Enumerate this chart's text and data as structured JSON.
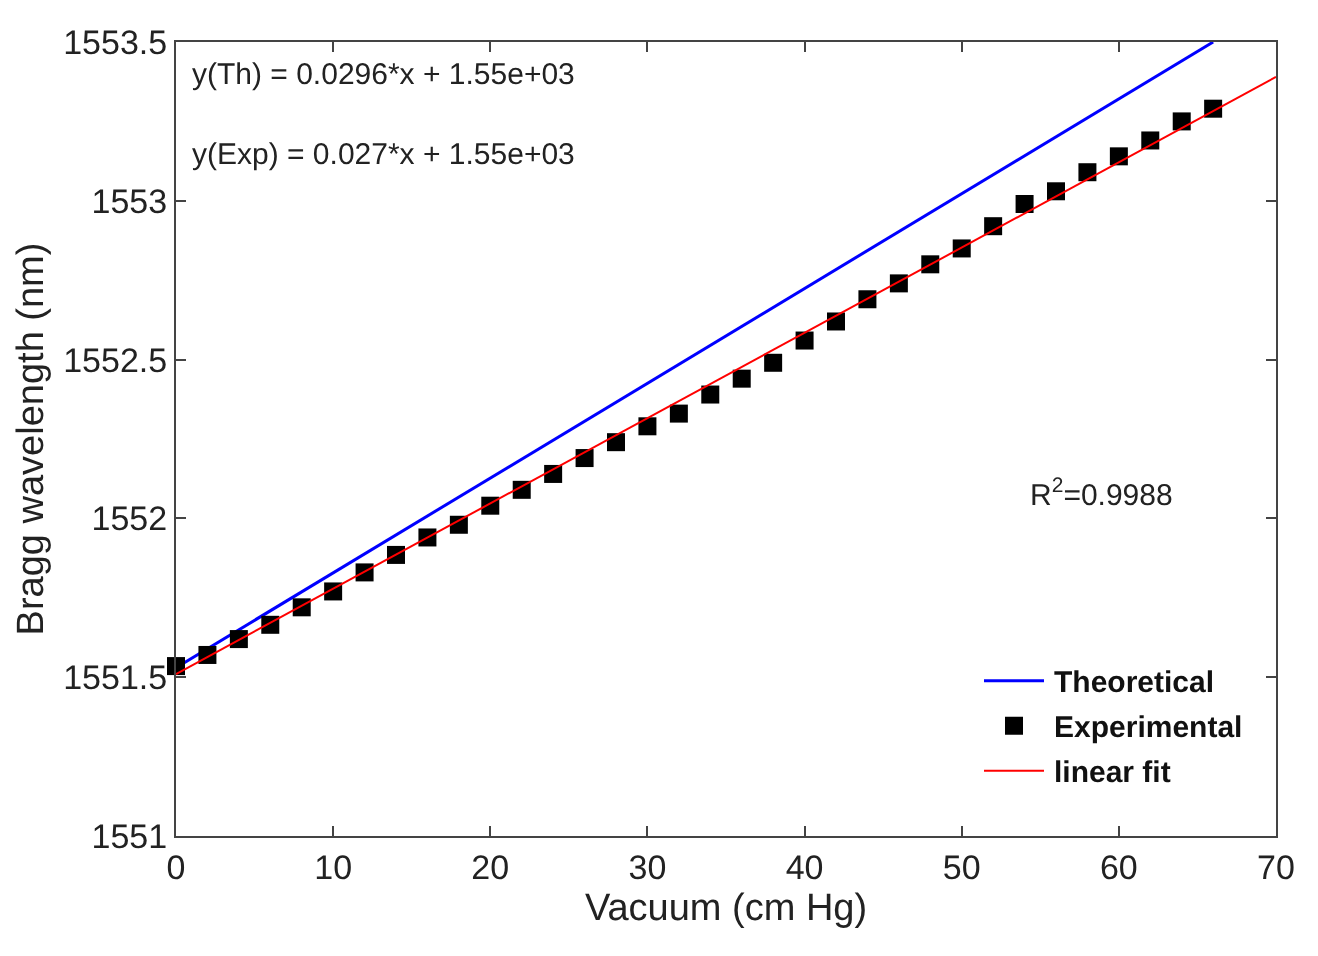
{
  "chart_data": {
    "type": "scatter",
    "xlabel": "Vacuum (cm Hg)",
    "ylabel": "Bragg wavelength (nm)",
    "xlim": [
      0,
      70
    ],
    "xticks": [
      0,
      10,
      20,
      30,
      40,
      50,
      60,
      70
    ],
    "ylim": [
      1551,
      1553.5
    ],
    "yticks": [
      1551,
      1551.5,
      1552,
      1552.5,
      1553,
      1553.5
    ],
    "grid": false,
    "legend": "bottom right",
    "annotations": [
      "y(Th) = 0.0296*x + 1.55e+03",
      "y(Exp) = 0.027*x + 1.55e+03",
      "R$^{2}$=0.9988"
    ],
    "series": [
      {
        "name": "Theoretical",
        "type": "line",
        "color": "#0000ff",
        "marker": "none",
        "line_style": "solid",
        "x": [
          0,
          66
        ],
        "values": [
          1551.53,
          1553.5
        ]
      },
      {
        "name": "Experimental",
        "color": "#000000",
        "marker": "square",
        "x": [
          0,
          2,
          4,
          6,
          8,
          10,
          12,
          14,
          16,
          18,
          20,
          22,
          24,
          26,
          28,
          30,
          32,
          34,
          36,
          38,
          40,
          42,
          44,
          46,
          48,
          50,
          52,
          54,
          56,
          58,
          60,
          62,
          64,
          66
        ],
        "values": [
          1551.535,
          1551.57,
          1551.62,
          1551.665,
          1551.72,
          1551.77,
          1551.83,
          1551.885,
          1551.94,
          1551.98,
          1552.04,
          1552.09,
          1552.14,
          1552.19,
          1552.24,
          1552.29,
          1552.33,
          1552.39,
          1552.44,
          1552.49,
          1552.56,
          1552.62,
          1552.69,
          1552.74,
          1552.8,
          1552.85,
          1552.92,
          1552.99,
          1553.03,
          1553.09,
          1553.14,
          1553.19,
          1553.25,
          1553.29
        ]
      },
      {
        "name": "linear fit",
        "type": "line",
        "color": "#ff0000",
        "marker": "none",
        "line_style": "solid",
        "x": [
          0,
          70
        ],
        "values": [
          1551.51,
          1553.39
        ]
      }
    ]
  }
}
